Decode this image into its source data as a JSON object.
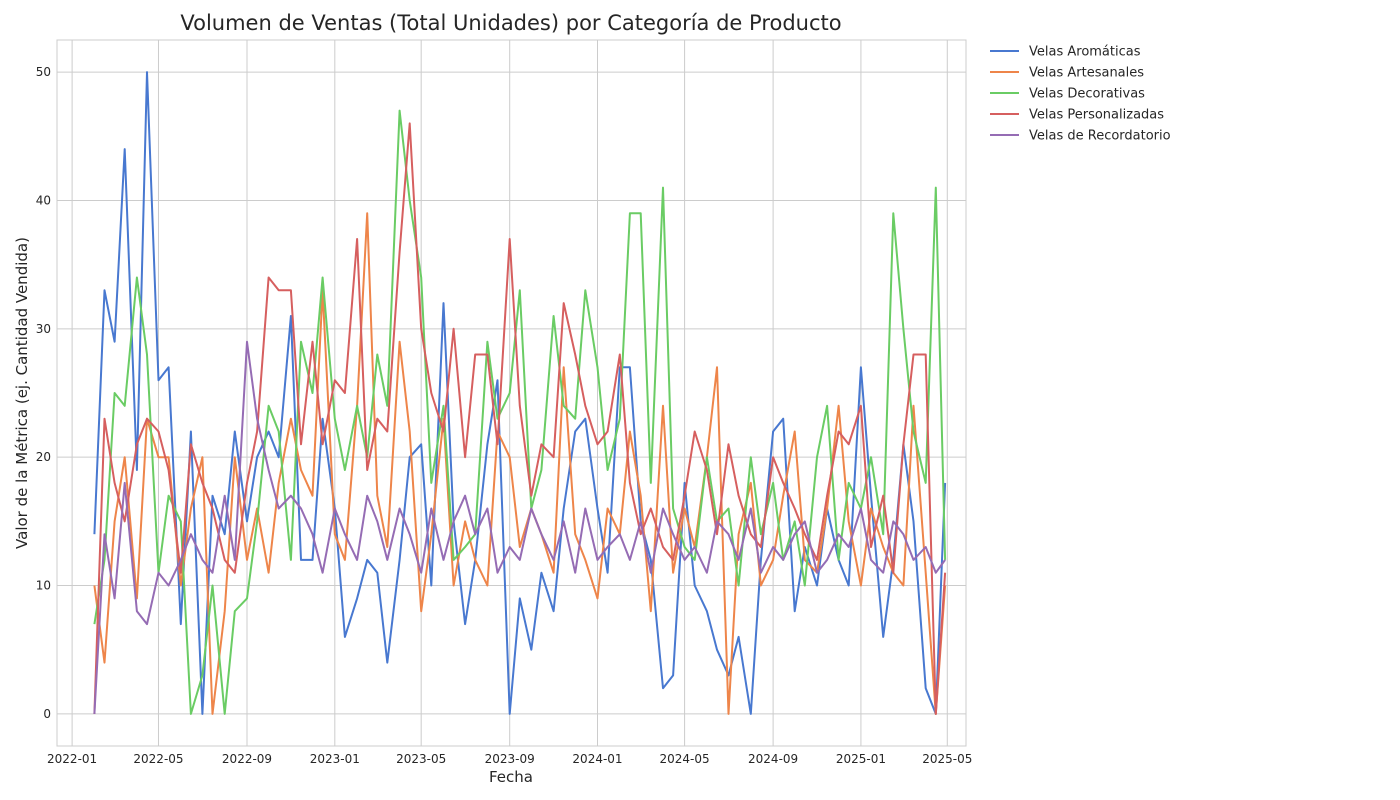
{
  "chart_data": {
    "type": "line",
    "title": "Volumen de Ventas (Total Unidades) por Categoría de Producto",
    "xlabel": "Fecha",
    "ylabel": "Valor de la Métrica (ej. Cantidad Vendida)",
    "xlim": [
      "2021-12-11",
      "2025-05-27"
    ],
    "ylim": [
      -2.5,
      52.5
    ],
    "x_ticks": [
      "2022-01",
      "2022-05",
      "2022-09",
      "2023-01",
      "2023-05",
      "2023-09",
      "2024-01",
      "2024-05",
      "2024-09",
      "2025-01",
      "2025-05"
    ],
    "y_ticks": [
      0,
      10,
      20,
      30,
      40,
      50
    ],
    "grid": true,
    "legend_position": "outside-top-right",
    "x": [
      "2022-02-01",
      "2022-02-15",
      "2022-03-01",
      "2022-03-15",
      "2022-04-01",
      "2022-04-15",
      "2022-05-01",
      "2022-05-15",
      "2022-06-01",
      "2022-06-15",
      "2022-07-01",
      "2022-07-15",
      "2022-08-01",
      "2022-08-15",
      "2022-09-01",
      "2022-09-15",
      "2022-10-01",
      "2022-10-15",
      "2022-11-01",
      "2022-11-15",
      "2022-12-01",
      "2022-12-15",
      "2023-01-01",
      "2023-01-15",
      "2023-02-01",
      "2023-02-15",
      "2023-03-01",
      "2023-03-15",
      "2023-04-01",
      "2023-04-15",
      "2023-05-01",
      "2023-05-15",
      "2023-06-01",
      "2023-06-15",
      "2023-07-01",
      "2023-07-15",
      "2023-08-01",
      "2023-08-15",
      "2023-09-01",
      "2023-09-15",
      "2023-10-01",
      "2023-10-15",
      "2023-11-01",
      "2023-11-15",
      "2023-12-01",
      "2023-12-15",
      "2024-01-01",
      "2024-01-15",
      "2024-02-01",
      "2024-02-15",
      "2024-03-01",
      "2024-03-15",
      "2024-04-01",
      "2024-04-15",
      "2024-05-01",
      "2024-05-15",
      "2024-06-01",
      "2024-06-15",
      "2024-07-01",
      "2024-07-15",
      "2024-08-01",
      "2024-08-15",
      "2024-09-01",
      "2024-09-15",
      "2024-10-01",
      "2024-10-15",
      "2024-11-01",
      "2024-11-15",
      "2024-12-01",
      "2024-12-15",
      "2025-01-01",
      "2025-01-15",
      "2025-02-01",
      "2025-02-15",
      "2025-03-01",
      "2025-03-15",
      "2025-04-01",
      "2025-04-15",
      "2025-04-28"
    ],
    "series": [
      {
        "name": "Velas Aromáticas",
        "color": "#4878d0",
        "values": [
          14,
          33,
          29,
          44,
          19,
          50,
          26,
          27,
          7,
          22,
          0,
          17,
          14,
          22,
          15,
          20,
          22,
          20,
          31,
          12,
          12,
          23,
          16,
          6,
          9,
          12,
          11,
          4,
          12,
          20,
          21,
          10,
          32,
          15,
          7,
          12,
          21,
          26,
          0,
          9,
          5,
          11,
          8,
          16,
          22,
          23,
          16,
          11,
          27,
          27,
          15,
          12,
          2,
          3,
          18,
          10,
          8,
          5,
          3,
          6,
          0,
          12,
          22,
          23,
          8,
          13,
          10,
          16,
          12,
          10,
          27,
          17,
          6,
          12,
          21,
          15,
          2,
          0,
          18
        ]
      },
      {
        "name": "Velas Artesanales",
        "color": "#ee854a",
        "values": [
          10,
          4,
          15,
          20,
          9,
          23,
          20,
          20,
          10,
          16,
          20,
          0,
          8,
          20,
          12,
          16,
          11,
          18,
          23,
          19,
          17,
          33,
          14,
          12,
          24,
          39,
          17,
          13,
          29,
          22,
          8,
          14,
          23,
          10,
          15,
          12,
          10,
          22,
          20,
          13,
          16,
          14,
          11,
          27,
          14,
          12,
          9,
          16,
          14,
          22,
          17,
          8,
          24,
          11,
          16,
          13,
          20,
          27,
          0,
          14,
          18,
          10,
          12,
          17,
          22,
          12,
          11,
          16,
          24,
          15,
          10,
          16,
          13,
          11,
          10,
          24,
          11,
          0,
          10
        ]
      },
      {
        "name": "Velas Decorativas",
        "color": "#6acc64",
        "values": [
          7,
          12,
          25,
          24,
          34,
          28,
          11,
          17,
          15,
          0,
          3,
          10,
          0,
          8,
          9,
          15,
          24,
          22,
          12,
          29,
          25,
          34,
          23,
          19,
          24,
          20,
          28,
          24,
          47,
          40,
          34,
          18,
          24,
          12,
          13,
          14,
          29,
          23,
          25,
          33,
          16,
          19,
          31,
          24,
          23,
          33,
          27,
          19,
          23,
          39,
          39,
          18,
          41,
          16,
          13,
          12,
          20,
          15,
          16,
          10,
          20,
          14,
          18,
          12,
          15,
          10,
          20,
          24,
          12,
          18,
          16,
          20,
          14,
          39,
          30,
          22,
          18,
          41,
          12
        ]
      },
      {
        "name": "Velas Personalizadas",
        "color": "#d65f5f",
        "values": [
          0,
          23,
          18,
          15,
          21,
          23,
          22,
          19,
          11,
          21,
          18,
          16,
          12,
          11,
          18,
          22,
          34,
          33,
          33,
          21,
          29,
          21,
          26,
          25,
          37,
          19,
          23,
          22,
          36,
          46,
          30,
          25,
          22,
          30,
          20,
          28,
          28,
          21,
          37,
          24,
          17,
          21,
          20,
          32,
          28,
          24,
          21,
          22,
          28,
          18,
          14,
          16,
          13,
          12,
          17,
          22,
          19,
          14,
          21,
          17,
          14,
          13,
          20,
          18,
          16,
          14,
          12,
          17,
          22,
          21,
          24,
          13,
          17,
          11,
          21,
          28,
          28,
          0,
          11
        ]
      },
      {
        "name": "Velas de Recordatorio",
        "color": "#956cb4",
        "values": [
          0,
          14,
          9,
          18,
          8,
          7,
          11,
          10,
          12,
          14,
          12,
          11,
          17,
          12,
          29,
          23,
          19,
          16,
          17,
          16,
          14,
          11,
          16,
          14,
          12,
          17,
          15,
          12,
          16,
          14,
          11,
          16,
          12,
          15,
          17,
          14,
          16,
          11,
          13,
          12,
          16,
          14,
          12,
          15,
          11,
          16,
          12,
          13,
          14,
          12,
          15,
          11,
          16,
          14,
          12,
          13,
          11,
          15,
          14,
          12,
          16,
          11,
          13,
          12,
          14,
          15,
          11,
          12,
          14,
          13,
          16,
          12,
          11,
          15,
          14,
          12,
          13,
          11,
          12
        ]
      }
    ]
  }
}
